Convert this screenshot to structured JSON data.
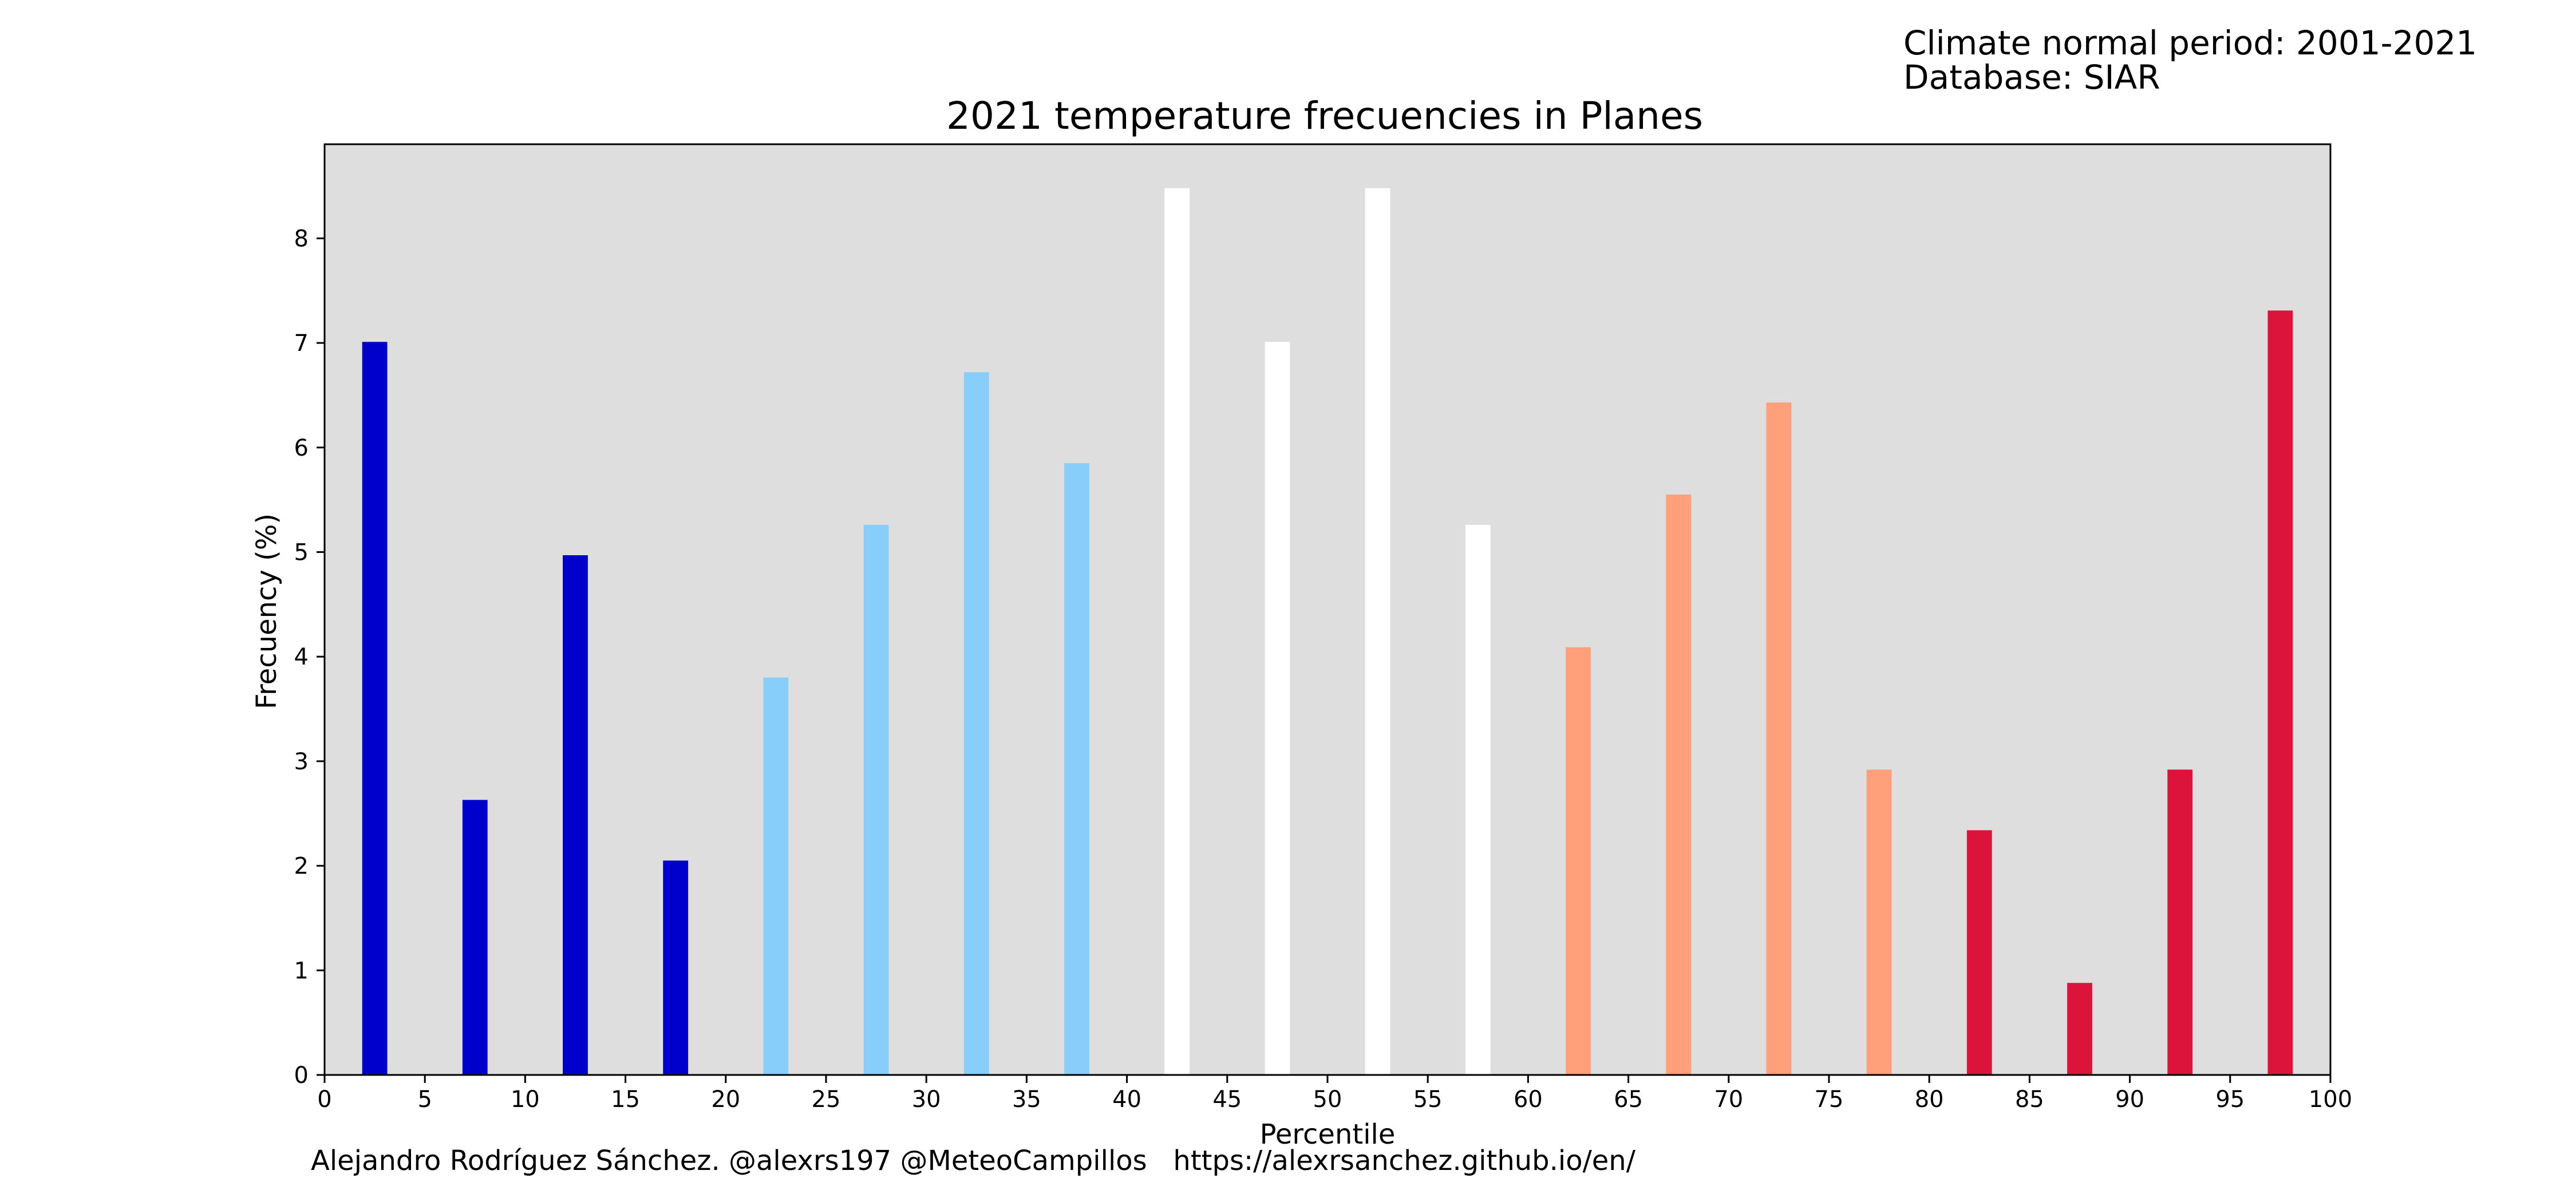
{
  "notes": {
    "period": "Climate normal period: 2001-2021",
    "database": "Database: SIAR"
  },
  "credit": "Alejandro Rodríguez Sánchez. @alexrs197 @MeteoCampillos   https://alexrsanchez.github.io/en/",
  "colors": {
    "background": "#dedede",
    "very_cold": "#0000cd",
    "cold": "#87cefa",
    "normal": "#ffffff",
    "warm": "#ffa07a",
    "very_warm": "#dc143c"
  },
  "chart_data": {
    "type": "bar",
    "title": "2021 temperature frecuencies in Planes",
    "xlabel": "Percentile",
    "ylabel": "Frecuency (%)",
    "xlim": [
      0,
      100
    ],
    "ylim": [
      0,
      8.9
    ],
    "xticks": [
      0,
      5,
      10,
      15,
      20,
      25,
      30,
      35,
      40,
      45,
      50,
      55,
      60,
      65,
      70,
      75,
      80,
      85,
      90,
      95,
      100
    ],
    "yticks": [
      0,
      1,
      2,
      3,
      4,
      5,
      6,
      7,
      8
    ],
    "grid": false,
    "legend": "none",
    "x": [
      2.5,
      7.5,
      12.5,
      17.5,
      22.5,
      27.5,
      32.5,
      37.5,
      42.5,
      47.5,
      52.5,
      57.5,
      62.5,
      67.5,
      72.5,
      77.5,
      82.5,
      87.5,
      92.5,
      97.5
    ],
    "values": [
      7.01,
      2.63,
      4.97,
      2.05,
      3.8,
      5.26,
      6.72,
      5.85,
      8.48,
      7.01,
      8.48,
      5.26,
      4.09,
      5.55,
      6.43,
      2.92,
      2.34,
      0.88,
      2.92,
      7.31
    ],
    "bar_colors": [
      "#0000cd",
      "#0000cd",
      "#0000cd",
      "#0000cd",
      "#87cefa",
      "#87cefa",
      "#87cefa",
      "#87cefa",
      "#ffffff",
      "#ffffff",
      "#ffffff",
      "#ffffff",
      "#ffa07a",
      "#ffa07a",
      "#ffa07a",
      "#ffa07a",
      "#dc143c",
      "#dc143c",
      "#dc143c",
      "#dc143c"
    ]
  }
}
